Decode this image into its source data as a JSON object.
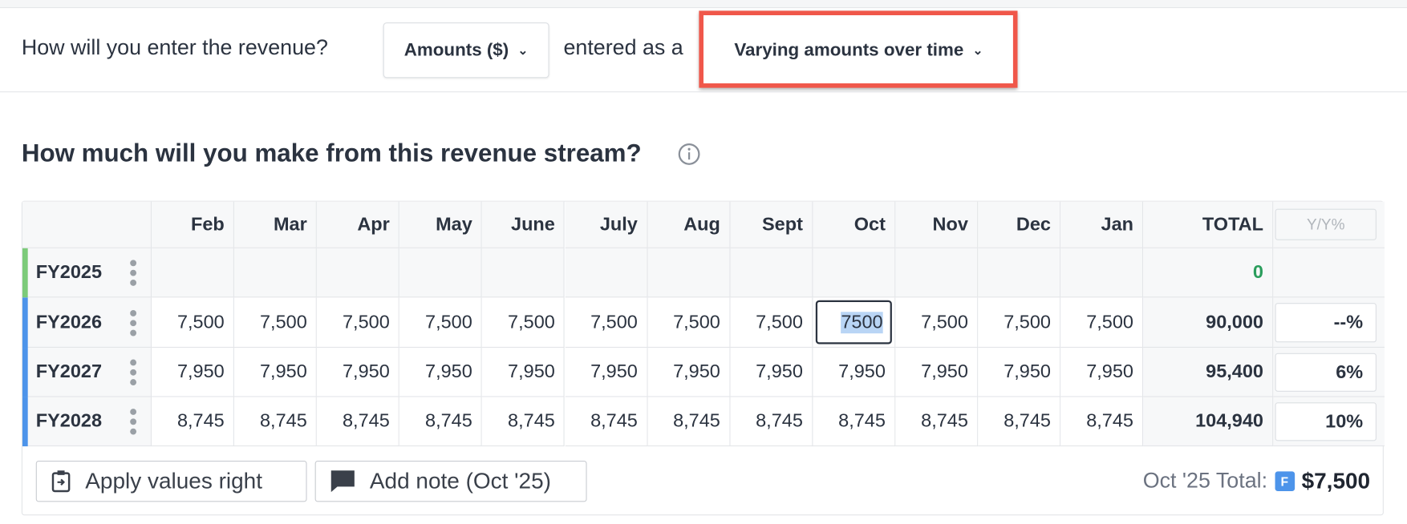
{
  "header": {
    "question": "How will you enter the revenue?",
    "unit_select": "Amounts ($)",
    "connector": "entered as a",
    "mode_select": "Varying amounts over time"
  },
  "section_title": "How much will you make from this revenue stream?",
  "table": {
    "columns": [
      "Feb",
      "Mar",
      "Apr",
      "May",
      "June",
      "July",
      "Aug",
      "Sept",
      "Oct",
      "Nov",
      "Dec",
      "Jan"
    ],
    "total_header": "TOTAL",
    "yoy_header": "Y/Y%",
    "rows": [
      {
        "label": "FY2025",
        "values": [],
        "total": "0"
      },
      {
        "label": "FY2026",
        "values": [
          "7,500",
          "7,500",
          "7,500",
          "7,500",
          "7,500",
          "7,500",
          "7,500",
          "7,500",
          "7500",
          "7,500",
          "7,500",
          "7,500"
        ],
        "total": "90,000",
        "yoy": "--%"
      },
      {
        "label": "FY2027",
        "values": [
          "7,950",
          "7,950",
          "7,950",
          "7,950",
          "7,950",
          "7,950",
          "7,950",
          "7,950",
          "7,950",
          "7,950",
          "7,950",
          "7,950"
        ],
        "total": "95,400",
        "yoy": "6%"
      },
      {
        "label": "FY2028",
        "values": [
          "8,745",
          "8,745",
          "8,745",
          "8,745",
          "8,745",
          "8,745",
          "8,745",
          "8,745",
          "8,745",
          "8,745",
          "8,745",
          "8,745"
        ],
        "total": "104,940",
        "yoy": "10%"
      }
    ]
  },
  "footer": {
    "apply_button": "Apply values right",
    "note_button": "Add note (Oct '25)",
    "summary_label": "Oct '25 Total:",
    "summary_badge": "F",
    "summary_value": "$7,500"
  }
}
